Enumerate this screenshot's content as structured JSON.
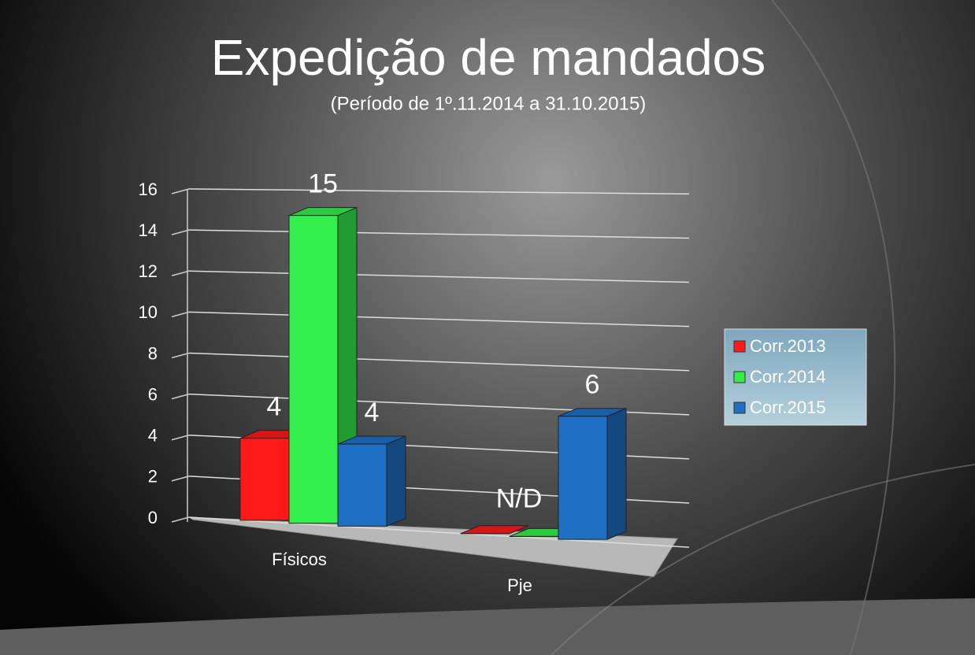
{
  "chart_data": {
    "type": "bar3d",
    "title": "Expedição de mandados",
    "subtitle": "(Período de 1º.11.2014  a  31.10.2015)",
    "categories": [
      "Físicos",
      "Pje"
    ],
    "series": [
      {
        "name": "Corr.2013",
        "color": "#ff1a1a",
        "values": [
          4,
          0
        ]
      },
      {
        "name": "Corr.2014",
        "color": "#33ee4d",
        "values": [
          15,
          0
        ]
      },
      {
        "name": "Corr.2015",
        "color": "#1f6fc4",
        "values": [
          4,
          6
        ]
      }
    ],
    "annotation": "N/D",
    "ylim": [
      0,
      16
    ],
    "yticks": [
      0,
      2,
      4,
      6,
      8,
      10,
      12,
      14,
      16
    ],
    "grid": true,
    "legend": "right"
  }
}
